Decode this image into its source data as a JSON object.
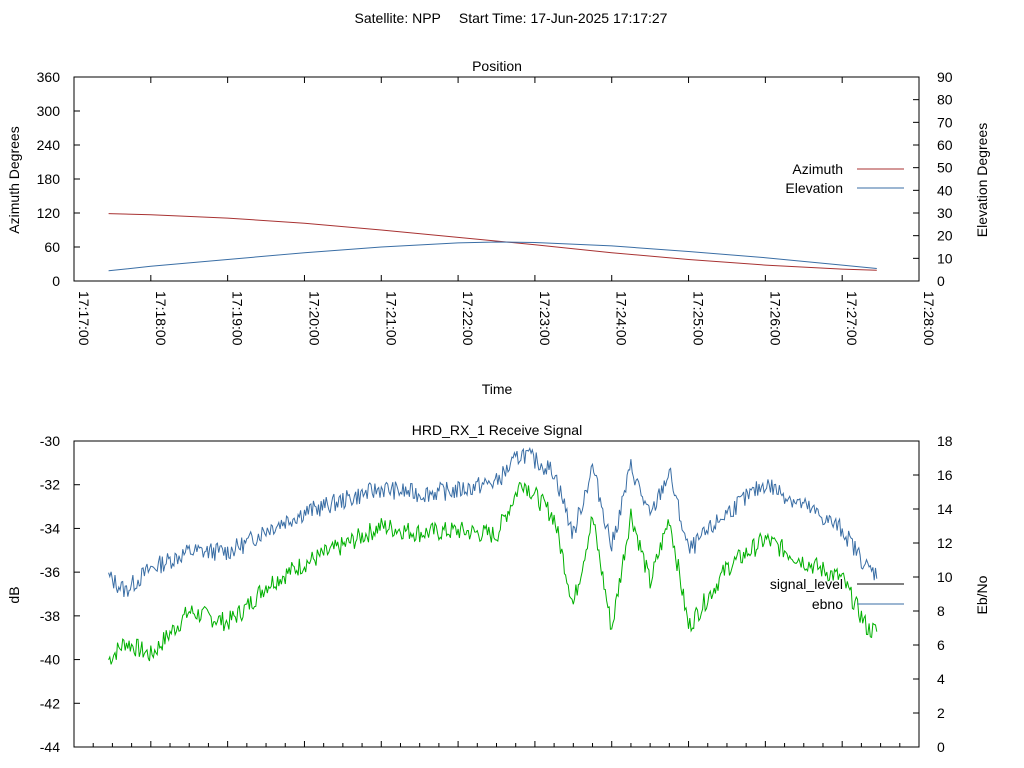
{
  "header": {
    "satellite": "Satellite: NPP",
    "start_time": "Start Time: 17-Jun-2025 17:17:27"
  },
  "chart_data": [
    {
      "type": "line",
      "title": "Position",
      "xlabel": "Time",
      "ylabel": "Azimuth Degrees",
      "y2label": "Elevation Degrees",
      "x_ticks": [
        "17:17:00",
        "17:18:00",
        "17:19:00",
        "17:20:00",
        "17:21:00",
        "17:22:00",
        "17:23:00",
        "17:24:00",
        "17:25:00",
        "17:26:00",
        "17:27:00",
        "17:28:00"
      ],
      "xlim": [
        "17:17:00",
        "17:28:00"
      ],
      "ylim": [
        0,
        360
      ],
      "y_ticks": [
        "0",
        "60",
        "120",
        "180",
        "240",
        "300",
        "360"
      ],
      "y2lim": [
        0,
        90
      ],
      "y2_ticks": [
        "0",
        "10",
        "20",
        "30",
        "40",
        "50",
        "60",
        "70",
        "80",
        "90"
      ],
      "legend_position": "right",
      "series": [
        {
          "name": "Azimuth",
          "axis": "left",
          "color": "#a83232",
          "x": [
            "17:17:27",
            "17:18:00",
            "17:19:00",
            "17:20:00",
            "17:21:00",
            "17:22:00",
            "17:23:00",
            "17:24:00",
            "17:25:00",
            "17:26:00",
            "17:27:00",
            "17:27:27"
          ],
          "y": [
            119,
            117,
            111,
            102,
            90,
            77,
            64,
            50,
            38,
            28,
            21,
            19
          ]
        },
        {
          "name": "Elevation",
          "axis": "right",
          "color": "#3a6ea5",
          "x": [
            "17:17:27",
            "17:18:00",
            "17:19:00",
            "17:20:00",
            "17:21:00",
            "17:22:00",
            "17:22:30",
            "17:23:00",
            "17:24:00",
            "17:25:00",
            "17:26:00",
            "17:27:00",
            "17:27:27"
          ],
          "y": [
            4.5,
            6.5,
            9.5,
            12.5,
            15,
            16.8,
            17.2,
            17,
            15.5,
            13,
            10.3,
            7,
            5.5
          ]
        }
      ]
    },
    {
      "type": "line",
      "title": "HRD_RX_1 Receive Signal",
      "ylabel": "dB",
      "y2label": "Eb/No",
      "ylim": [
        -44,
        -30
      ],
      "y_ticks": [
        "-44",
        "-42",
        "-40",
        "-38",
        "-36",
        "-34",
        "-32",
        "-30"
      ],
      "y2lim": [
        0,
        18
      ],
      "y2_ticks": [
        "0",
        "2",
        "4",
        "6",
        "8",
        "10",
        "12",
        "14",
        "16",
        "18"
      ],
      "legend_position": "right",
      "series": [
        {
          "name": "signal_level",
          "axis": "left",
          "color": "#00b000",
          "x": [
            "17:17:27",
            "17:17:40",
            "17:18:00",
            "17:18:30",
            "17:19:00",
            "17:19:15",
            "17:19:30",
            "17:20:00",
            "17:20:30",
            "17:21:00",
            "17:21:30",
            "17:22:00",
            "17:22:30",
            "17:22:50",
            "17:23:15",
            "17:23:30",
            "17:23:45",
            "17:24:00",
            "17:24:15",
            "17:24:30",
            "17:24:45",
            "17:25:00",
            "17:25:30",
            "17:26:00",
            "17:26:30",
            "17:27:00",
            "17:27:20",
            "17:27:27"
          ],
          "y": [
            -40,
            -39.2,
            -39.8,
            -37.8,
            -38.3,
            -37.6,
            -36.6,
            -35.6,
            -34.8,
            -33.9,
            -34.2,
            -34.1,
            -34.3,
            -31.8,
            -33.5,
            -37.5,
            -33.5,
            -38.6,
            -33.3,
            -36.5,
            -33.5,
            -38.5,
            -35.8,
            -34.5,
            -35.5,
            -36.3,
            -38.6,
            -38.7
          ]
        },
        {
          "name": "ebno",
          "axis": "right",
          "color": "#3a6ea5",
          "x": [
            "17:17:27",
            "17:17:40",
            "17:18:00",
            "17:18:30",
            "17:19:00",
            "17:19:15",
            "17:19:30",
            "17:20:00",
            "17:20:30",
            "17:21:00",
            "17:21:30",
            "17:22:00",
            "17:22:30",
            "17:22:50",
            "17:23:15",
            "17:23:30",
            "17:23:45",
            "17:24:00",
            "17:24:15",
            "17:24:30",
            "17:24:45",
            "17:25:00",
            "17:25:30",
            "17:26:00",
            "17:26:30",
            "17:27:00",
            "17:27:20",
            "17:27:27"
          ],
          "y": [
            10,
            9.2,
            10.5,
            11.5,
            11.5,
            12,
            12.8,
            13.8,
            14.5,
            15.2,
            14.9,
            15.1,
            15.6,
            17.3,
            16.2,
            12.5,
            16.5,
            11.8,
            16.5,
            13.5,
            16.2,
            11.5,
            13.8,
            15.5,
            14.2,
            12.8,
            10.5,
            10.2
          ]
        }
      ]
    }
  ]
}
